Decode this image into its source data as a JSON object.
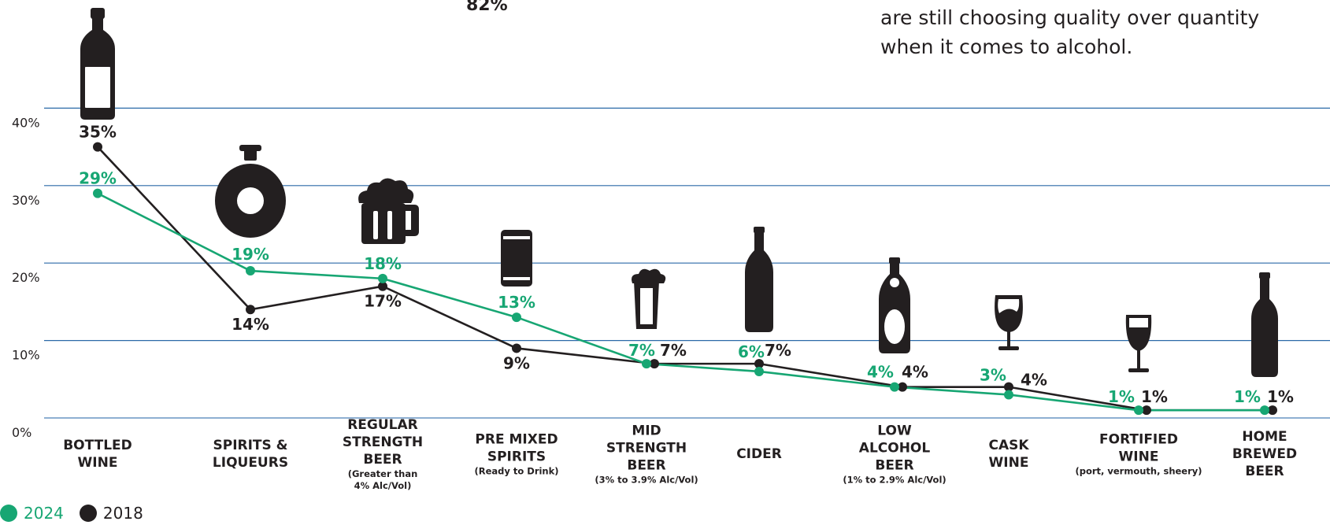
{
  "header": {
    "top_percent": "82%",
    "blurb_line1": "are still choosing quality over quantity",
    "blurb_line2": "when it comes to alcohol."
  },
  "colors": {
    "series_2024": "#17a673",
    "series_2018": "#231f20",
    "grid": "#2b6aa8",
    "icon": "#231f20"
  },
  "legend": {
    "a": "2024",
    "b": "2018"
  },
  "chart_data": {
    "type": "line",
    "title": "",
    "xlabel": "",
    "ylabel": "",
    "ylim": [
      0,
      40
    ],
    "yticks": [
      {
        "value": 0,
        "label": "0%"
      },
      {
        "value": 10,
        "label": "10%"
      },
      {
        "value": 20,
        "label": "20%"
      },
      {
        "value": 30,
        "label": "30%"
      },
      {
        "value": 40,
        "label": "40%"
      }
    ],
    "grid": true,
    "legend_position": "bottom-left",
    "categories": [
      {
        "main": [
          "BOTTLED",
          "WINE"
        ],
        "sub": [],
        "icon": "wine-bottle-icon"
      },
      {
        "main": [
          "SPIRITS &",
          "LIQUEURS"
        ],
        "sub": [],
        "icon": "decanter-icon"
      },
      {
        "main": [
          "REGULAR",
          "STRENGTH",
          "BEER"
        ],
        "sub": [
          "(Greater than",
          "4% Alc/Vol)"
        ],
        "icon": "beer-mug-icon"
      },
      {
        "main": [
          "PRE MIXED",
          "SPIRITS"
        ],
        "sub": [
          "(Ready to Drink)"
        ],
        "icon": "can-icon"
      },
      {
        "main": [
          "MID",
          "STRENGTH",
          "BEER"
        ],
        "sub": [
          "(3% to 3.9% Alc/Vol)"
        ],
        "icon": "beer-glass-icon"
      },
      {
        "main": [
          "CIDER"
        ],
        "sub": [],
        "icon": "cider-bottle-icon"
      },
      {
        "main": [
          "LOW",
          "ALCOHOL",
          "BEER"
        ],
        "sub": [
          "(1% to 2.9% Alc/Vol)"
        ],
        "icon": "beer-bottle-label-icon"
      },
      {
        "main": [
          "CASK",
          "WINE"
        ],
        "sub": [],
        "icon": "wine-glass-icon"
      },
      {
        "main": [
          "FORTIFIED",
          "WINE"
        ],
        "sub": [
          "(port, vermouth, sheery)"
        ],
        "icon": "port-glass-icon"
      },
      {
        "main": [
          "HOME",
          "BREWED",
          "BEER"
        ],
        "sub": [],
        "icon": "beer-bottle-icon"
      }
    ],
    "series": [
      {
        "name": "2024",
        "values": [
          29,
          19,
          18,
          13,
          7,
          6,
          4,
          3,
          1,
          1
        ],
        "labels": [
          "29%",
          "19%",
          "18%",
          "13%",
          "7%",
          "6%",
          "4%",
          "3%",
          "1%",
          "1%"
        ]
      },
      {
        "name": "2018",
        "values": [
          35,
          14,
          17,
          9,
          7,
          7,
          4,
          4,
          1,
          1
        ],
        "labels": [
          "35%",
          "14%",
          "17%",
          "9%",
          "7%",
          "7%",
          "4%",
          "4%",
          "1%",
          "1%"
        ]
      }
    ]
  }
}
